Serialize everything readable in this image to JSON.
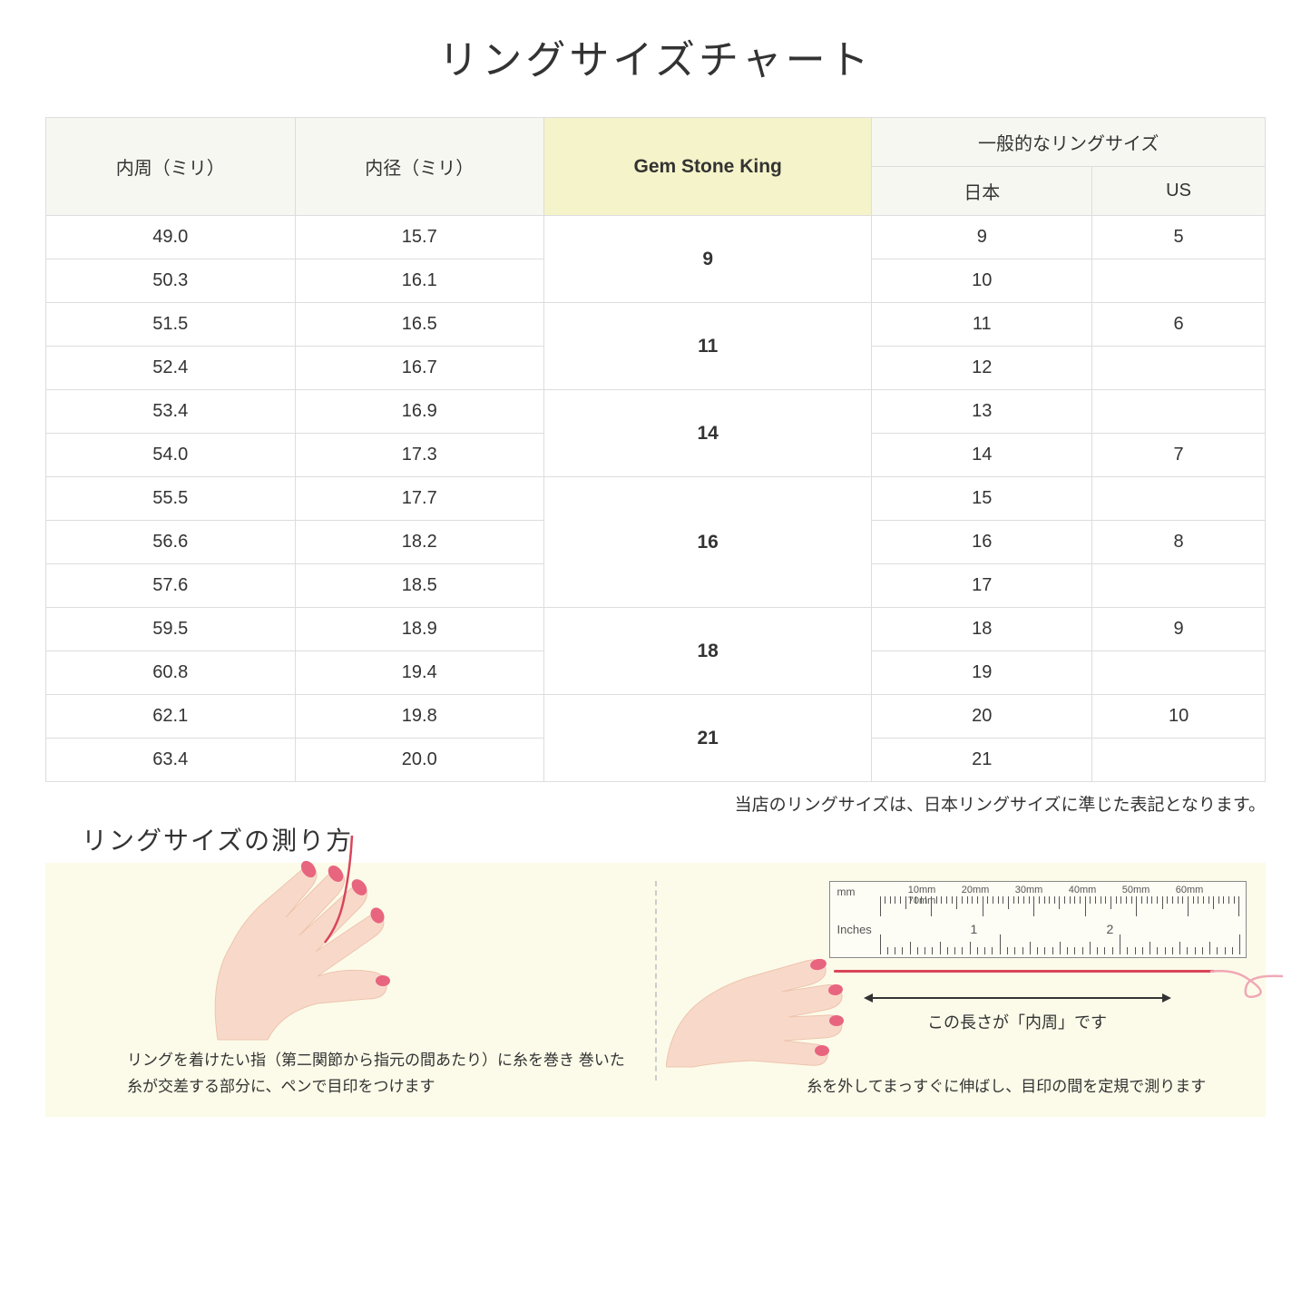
{
  "title": "リングサイズチャート",
  "headers": {
    "circumference": "内周（ミリ）",
    "diameter": "内径（ミリ）",
    "gsk": "Gem Stone King",
    "common": "一般的なリングサイズ",
    "jp": "日本",
    "us": "US"
  },
  "rows": [
    {
      "c": "49.0",
      "d": "15.7",
      "jp": "9",
      "us": "5"
    },
    {
      "c": "50.3",
      "d": "16.1",
      "jp": "10",
      "us": ""
    },
    {
      "c": "51.5",
      "d": "16.5",
      "jp": "11",
      "us": "6"
    },
    {
      "c": "52.4",
      "d": "16.7",
      "jp": "12",
      "us": ""
    },
    {
      "c": "53.4",
      "d": "16.9",
      "jp": "13",
      "us": ""
    },
    {
      "c": "54.0",
      "d": "17.3",
      "jp": "14",
      "us": "7"
    },
    {
      "c": "55.5",
      "d": "17.7",
      "jp": "15",
      "us": ""
    },
    {
      "c": "56.6",
      "d": "18.2",
      "jp": "16",
      "us": "8"
    },
    {
      "c": "57.6",
      "d": "18.5",
      "jp": "17",
      "us": ""
    },
    {
      "c": "59.5",
      "d": "18.9",
      "jp": "18",
      "us": "9"
    },
    {
      "c": "60.8",
      "d": "19.4",
      "jp": "19",
      "us": ""
    },
    {
      "c": "62.1",
      "d": "19.8",
      "jp": "20",
      "us": "10"
    },
    {
      "c": "63.4",
      "d": "20.0",
      "jp": "21",
      "us": ""
    }
  ],
  "gsk_groups": [
    {
      "span": 2,
      "val": "9"
    },
    {
      "span": 2,
      "val": "11"
    },
    {
      "span": 2,
      "val": "14"
    },
    {
      "span": 3,
      "val": "16"
    },
    {
      "span": 2,
      "val": "18"
    },
    {
      "span": 2,
      "val": "21"
    }
  ],
  "note": "当店のリングサイズは、日本リングサイズに準じた表記となります。",
  "howto_title": "リングサイズの測り方",
  "howto_left": "リングを着けたい指（第二関節から指元の間あたり）に糸を巻き\n巻いた糸が交差する部分に、ペンで目印をつけます",
  "howto_right": "糸を外してまっすぐに伸ばし、目印の間を定規で測ります",
  "arrow_label": "この長さが「内周」です",
  "ruler": {
    "mm_label": "mm",
    "in_label": "Inches",
    "mm_marks": [
      "10mm",
      "20mm",
      "30mm",
      "40mm",
      "50mm",
      "60mm",
      "70mm"
    ],
    "in_marks": [
      "1",
      "2"
    ]
  },
  "colors": {
    "header_plain": "#f7f7f2",
    "header_gsk": "#f5f3c9",
    "howto_bg": "#fcfbe9",
    "skin": "#f8d9c9",
    "skin_dark": "#eec4af",
    "nail": "#e8657f",
    "thread": "#d9455a",
    "border": "#dddddd"
  }
}
